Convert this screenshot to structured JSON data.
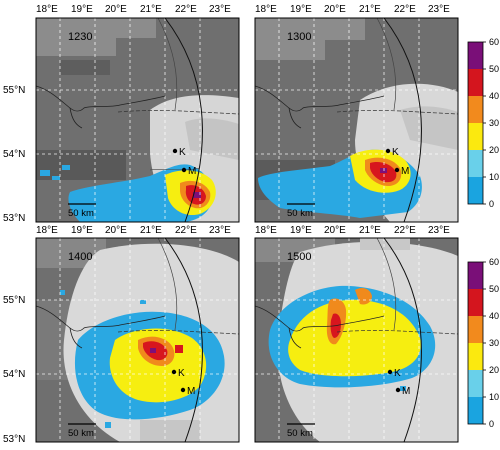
{
  "lon_labels": [
    "18°E",
    "19°E",
    "20°E",
    "21°E",
    "22°E",
    "23°E"
  ],
  "lat_labels": [
    "55°N",
    "54°N",
    "53°N"
  ],
  "panels": [
    {
      "time": "1230"
    },
    {
      "time": "1300"
    },
    {
      "time": "1400"
    },
    {
      "time": "1500"
    }
  ],
  "cities": [
    {
      "label": "K"
    },
    {
      "label": "M"
    }
  ],
  "scale_bar": "50 km",
  "colorbar": {
    "ticks": [
      "60",
      "50",
      "40",
      "30",
      "20",
      "10",
      "0"
    ],
    "colors": [
      "#7a0f78",
      "#d4151e",
      "#f28a1d",
      "#fbe90f",
      "#69d0ea",
      "#1aa4e0"
    ]
  },
  "colors": {
    "background_dark": "#6e6e6e",
    "cloud_light": "#d7d7d7",
    "radar_low": "#29a9e3",
    "radar_mid": "#f7ef12",
    "radar_high": "#d62020"
  }
}
